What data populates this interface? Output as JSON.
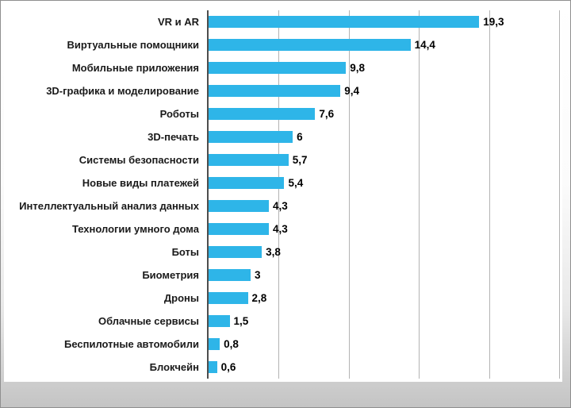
{
  "chart_data": {
    "type": "bar",
    "orientation": "horizontal",
    "title": "",
    "xlabel": "",
    "ylabel": "",
    "xlim": [
      0,
      25
    ],
    "gridline_step": 5,
    "grid": true,
    "legend": false,
    "bar_color": "#2eb5e8",
    "axis_color": "#4d4d4d",
    "gridline_color": "#b3b3b3",
    "categories": [
      "VR и AR",
      "Виртуальные помощники",
      "Мобильные приложения",
      "3D-графика и моделирование",
      "Роботы",
      "3D-печать",
      "Системы безопасности",
      "Новые виды платежей",
      "Интеллектуальный анализ данных",
      "Технологии умного дома",
      "Боты",
      "Биометрия",
      "Дроны",
      "Облачные сервисы",
      "Беспилотные автомобили",
      "Блокчейн"
    ],
    "values": [
      19.3,
      14.4,
      9.8,
      9.4,
      7.6,
      6,
      5.7,
      5.4,
      4.3,
      4.3,
      3.8,
      3,
      2.8,
      1.5,
      0.8,
      0.6
    ],
    "value_labels": [
      "19,3",
      "14,4",
      "9,8",
      "9,4",
      "7,6",
      "6",
      "5,7",
      "5,4",
      "4,3",
      "4,3",
      "3,8",
      "3",
      "2,8",
      "1,5",
      "0,8",
      "0,6"
    ]
  }
}
